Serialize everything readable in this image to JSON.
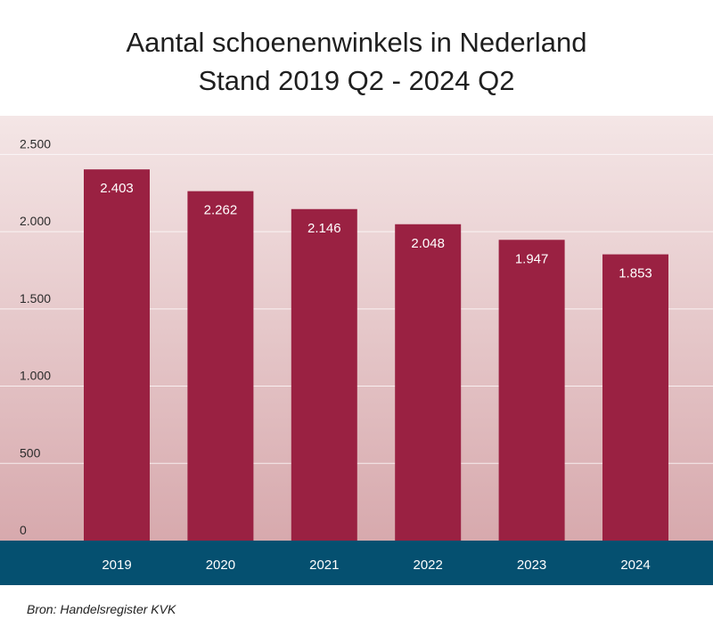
{
  "title": "Aantal schoenenwinkels in Nederland",
  "subtitle": "Stand 2019 Q2 - 2024 Q2",
  "source": "Bron: Handelsregister KVK",
  "colors": {
    "bar": "#9a2142",
    "axis_band": "#055070",
    "bg_top": "#f4e6e6",
    "bg_bottom": "#d7a9ad"
  },
  "chart_data": {
    "type": "bar",
    "title": "Aantal schoenenwinkels in Nederland",
    "subtitle": "Stand 2019 Q2 - 2024 Q2",
    "categories": [
      "2019",
      "2020",
      "2021",
      "2022",
      "2023",
      "2024"
    ],
    "values": [
      2403,
      2262,
      2146,
      2048,
      1947,
      1853
    ],
    "value_labels": [
      "2.403",
      "2.262",
      "2.146",
      "2.048",
      "1.947",
      "1.853"
    ],
    "yticks": [
      0,
      500,
      1000,
      1500,
      2000,
      2500
    ],
    "ytick_labels": [
      "0",
      "500",
      "1.000",
      "1.500",
      "2.000",
      "2.500"
    ],
    "ylim": [
      0,
      2750
    ],
    "grid": true,
    "legend": "none"
  }
}
